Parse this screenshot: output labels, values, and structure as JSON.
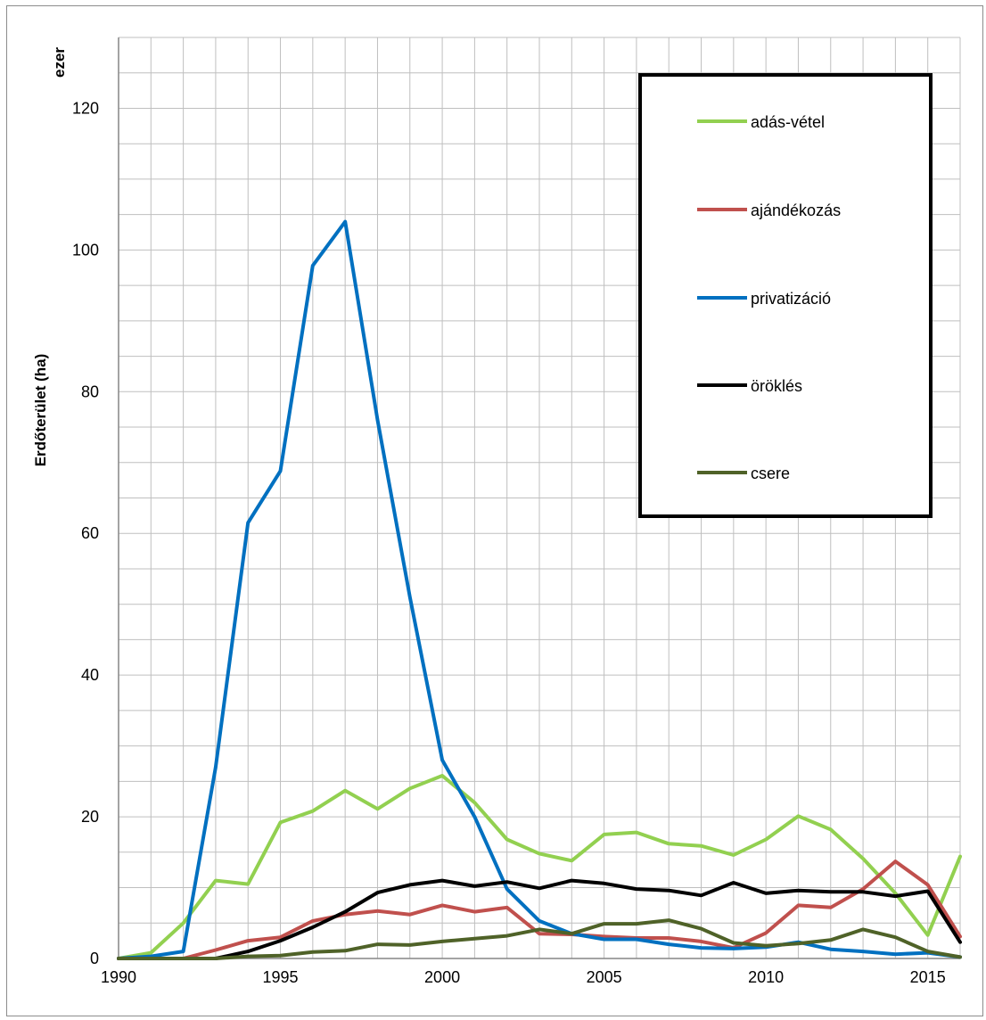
{
  "chart_data": {
    "type": "line",
    "ylabel": "Erdőterület (ha)",
    "y_unit": "ezer",
    "xlabel": "",
    "xlim": [
      1990,
      2016
    ],
    "ylim": [
      0,
      130
    ],
    "xticks": [
      1990,
      1995,
      2000,
      2005,
      2010,
      2015
    ],
    "yticks": [
      0,
      20,
      40,
      60,
      80,
      100,
      120
    ],
    "grid": true,
    "legend_position": "top-right",
    "x": [
      1990,
      1991,
      1992,
      1993,
      1994,
      1995,
      1996,
      1997,
      1998,
      1999,
      2000,
      2001,
      2002,
      2003,
      2004,
      2005,
      2006,
      2007,
      2008,
      2009,
      2010,
      2011,
      2012,
      2013,
      2014,
      2015,
      2016
    ],
    "series": [
      {
        "name": "adás-vétel",
        "color": "#92d050",
        "values": [
          0,
          0.8,
          5,
          11,
          10.5,
          19.2,
          20.8,
          23.7,
          21.1,
          24,
          25.8,
          22,
          16.8,
          14.8,
          13.8,
          17.5,
          17.8,
          16.2,
          15.9,
          14.6,
          16.8,
          20.1,
          18.2,
          14.1,
          9.2,
          3.3,
          14.4
        ]
      },
      {
        "name": "ajándékozás",
        "color": "#c0504d",
        "values": [
          0,
          0,
          0,
          1.2,
          2.5,
          3,
          5.3,
          6.2,
          6.7,
          6.2,
          7.5,
          6.6,
          7.2,
          3.5,
          3.4,
          3.1,
          2.9,
          2.9,
          2.4,
          1.5,
          3.6,
          7.5,
          7.2,
          9.8,
          13.7,
          10.4,
          3.1
        ]
      },
      {
        "name": "privatizáció",
        "color": "#0070c0",
        "values": [
          0,
          0.3,
          1,
          27,
          61.5,
          68.8,
          97.8,
          104,
          76,
          51,
          28,
          20,
          9.8,
          5.3,
          3.5,
          2.7,
          2.7,
          2,
          1.5,
          1.4,
          1.6,
          2.3,
          1.3,
          1,
          0.6,
          0.8,
          0.2
        ]
      },
      {
        "name": "öröklés",
        "color": "#000000",
        "values": [
          0,
          0,
          0,
          0,
          1,
          2.5,
          4.4,
          6.6,
          9.3,
          10.4,
          11,
          10.2,
          10.8,
          9.9,
          11,
          10.6,
          9.8,
          9.6,
          8.9,
          10.7,
          9.2,
          9.6,
          9.4,
          9.4,
          8.8,
          9.5,
          2.3
        ]
      },
      {
        "name": "csere",
        "color": "#4f6228",
        "values": [
          0,
          0,
          0,
          0,
          0.3,
          0.4,
          0.9,
          1.1,
          2,
          1.9,
          2.4,
          2.8,
          3.2,
          4.1,
          3.5,
          4.9,
          4.9,
          5.4,
          4.2,
          2.2,
          1.8,
          2.1,
          2.6,
          4.1,
          3,
          1,
          0.2
        ]
      }
    ]
  }
}
